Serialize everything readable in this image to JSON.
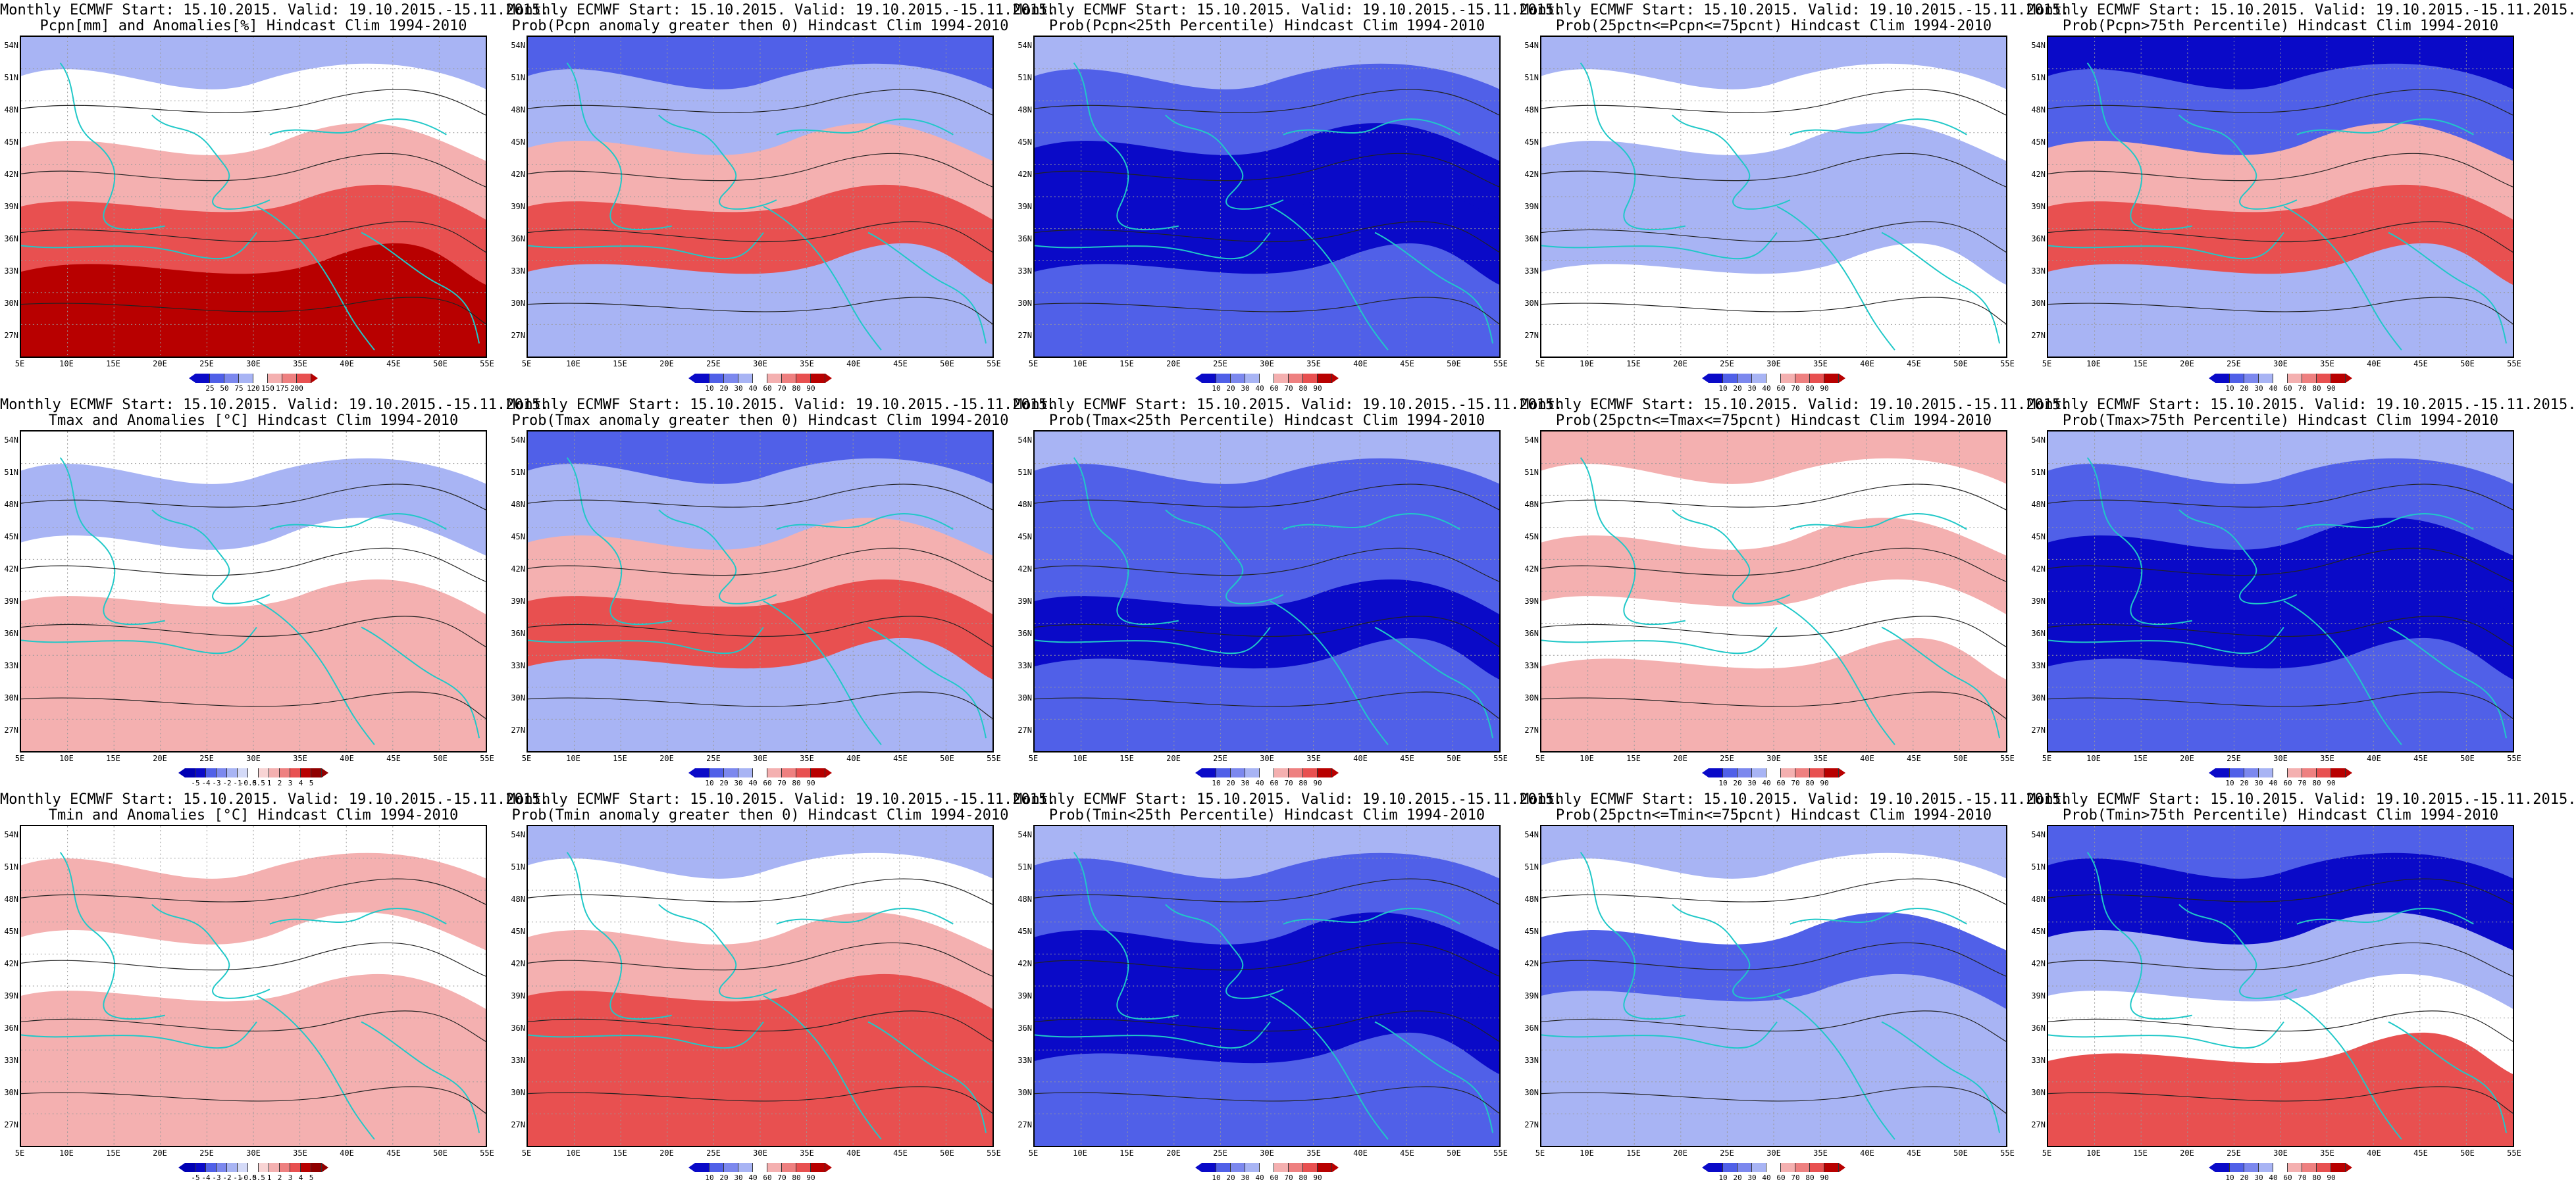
{
  "colors": {
    "deep_blue": "#0a0ac8",
    "mid_blue": "#5060e8",
    "light_blue": "#a8b4f4",
    "white": "#ffffff",
    "light_red": "#f4b0b0",
    "mid_red": "#e85050",
    "deep_red": "#b80000",
    "coast": "#20c8c8"
  },
  "axes": {
    "lat_labels": [
      "54N",
      "51N",
      "48N",
      "45N",
      "42N",
      "39N",
      "36N",
      "33N",
      "30N",
      "27N"
    ],
    "lon_labels": [
      "5E",
      "10E",
      "15E",
      "20E",
      "25E",
      "30E",
      "35E",
      "40E",
      "45E",
      "50E",
      "55E"
    ]
  },
  "rows": [
    {
      "variable": "Pcpn",
      "panels": [
        {
          "title1": "Monthly ECMWF Start: 15.10.2015. Valid: 19.10.2015.-15.11.2015.",
          "title2": "Pcpn[mm] and Anomalies[%] Hindcast Clim 1994-2010",
          "cbar": [
            "25",
            "50",
            "75",
            "120",
            "150",
            "175",
            "200"
          ],
          "scheme": "anom_red_upper"
        },
        {
          "title1": "Monthly ECMWF Start: 15.10.2015. Valid: 19.10.2015.-15.11.2015.",
          "title2": "Prob(Pcpn anomaly greater then 0) Hindcast Clim 1994-2010",
          "cbar": [
            "10",
            "20",
            "30",
            "40",
            "60",
            "70",
            "80",
            "90"
          ],
          "scheme": "prob_mixed"
        },
        {
          "title1": "Monthly ECMWF Start: 15.10.2015. Valid: 19.10.2015.-15.11.2015.",
          "title2": "Prob(Pcpn<25th Percentile) Hindcast Clim 1994-2010",
          "cbar": [
            "10",
            "20",
            "30",
            "40",
            "60",
            "70",
            "80",
            "90"
          ],
          "scheme": "prob_blue"
        },
        {
          "title1": "Monthly ECMWF Start: 15.10.2015. Valid: 19.10.2015.-15.11.2015.",
          "title2": "Prob(25pctn<=Pcpn<=75pcnt) Hindcast Clim 1994-2010",
          "cbar": [
            "10",
            "20",
            "30",
            "40",
            "60",
            "70",
            "80",
            "90"
          ],
          "scheme": "prob_light"
        },
        {
          "title1": "Monthly ECMWF Start: 15.10.2015. Valid: 19.10.2015.-15.11.2015.",
          "title2": "Prob(Pcpn>75th Percentile) Hindcast Clim 1994-2010",
          "cbar": [
            "10",
            "20",
            "30",
            "40",
            "60",
            "70",
            "80",
            "90"
          ],
          "scheme": "prob_mixed_blue"
        }
      ]
    },
    {
      "variable": "Tmax",
      "panels": [
        {
          "title1": "Monthly ECMWF Start: 15.10.2015. Valid: 19.10.2015.-15.11.2015.",
          "title2": "Tmax and Anomalies [°C] Hindcast Clim 1994-2010",
          "cbar": [
            "-5",
            "-4",
            "-3",
            "-2",
            "-1",
            "-0.5",
            "0.5",
            "1",
            "2",
            "3",
            "4",
            "5"
          ],
          "scheme": "anom_light"
        },
        {
          "title1": "Monthly ECMWF Start: 15.10.2015. Valid: 19.10.2015.-15.11.2015.",
          "title2": "Prob(Tmax anomaly greater then 0) Hindcast Clim 1994-2010",
          "cbar": [
            "10",
            "20",
            "30",
            "40",
            "60",
            "70",
            "80",
            "90"
          ],
          "scheme": "prob_mixed"
        },
        {
          "title1": "Monthly ECMWF Start: 15.10.2015. Valid: 19.10.2015.-15.11.2015.",
          "title2": "Prob(Tmax<25th Percentile) Hindcast Clim 1994-2010",
          "cbar": [
            "10",
            "20",
            "30",
            "40",
            "60",
            "70",
            "80",
            "90"
          ],
          "scheme": "prob_blue_mid"
        },
        {
          "title1": "Monthly ECMWF Start: 15.10.2015. Valid: 19.10.2015.-15.11.2015.",
          "title2": "Prob(25pctn<=Tmax<=75pcnt) Hindcast Clim 1994-2010",
          "cbar": [
            "10",
            "20",
            "30",
            "40",
            "60",
            "70",
            "80",
            "90"
          ],
          "scheme": "prob_light_red"
        },
        {
          "title1": "Monthly ECMWF Start: 15.10.2015. Valid: 19.10.2015.-15.11.2015.",
          "title2": "Prob(Tmax>75th Percentile) Hindcast Clim 1994-2010",
          "cbar": [
            "10",
            "20",
            "30",
            "40",
            "60",
            "70",
            "80",
            "90"
          ],
          "scheme": "prob_blue"
        }
      ]
    },
    {
      "variable": "Tmin",
      "panels": [
        {
          "title1": "Monthly ECMWF Start: 15.10.2015. Valid: 19.10.2015.-15.11.2015.",
          "title2": "Tmin and Anomalies [°C] Hindcast Clim 1994-2010",
          "cbar": [
            "-5",
            "-4",
            "-3",
            "-2",
            "-1",
            "-0.5",
            "0.5",
            "1",
            "2",
            "3",
            "4",
            "5"
          ],
          "scheme": "anom_light_red"
        },
        {
          "title1": "Monthly ECMWF Start: 15.10.2015. Valid: 19.10.2015.-15.11.2015.",
          "title2": "Prob(Tmin anomaly greater then 0) Hindcast Clim 1994-2010",
          "cbar": [
            "10",
            "20",
            "30",
            "40",
            "60",
            "70",
            "80",
            "90"
          ],
          "scheme": "prob_red"
        },
        {
          "title1": "Monthly ECMWF Start: 15.10.2015. Valid: 19.10.2015.-15.11.2015.",
          "title2": "Prob(Tmin<25th Percentile) Hindcast Clim 1994-2010",
          "cbar": [
            "10",
            "20",
            "30",
            "40",
            "60",
            "70",
            "80",
            "90"
          ],
          "scheme": "prob_blue"
        },
        {
          "title1": "Monthly ECMWF Start: 15.10.2015. Valid: 19.10.2015.-15.11.2015.",
          "title2": "Prob(25pctn<=Tmin<=75pcnt) Hindcast Clim 1994-2010",
          "cbar": [
            "10",
            "20",
            "30",
            "40",
            "60",
            "70",
            "80",
            "90"
          ],
          "scheme": "prob_light_mixed"
        },
        {
          "title1": "Monthly ECMWF Start: 15.10.2015. Valid: 19.10.2015.-15.11.2015.",
          "title2": "Prob(Tmin>75th Percentile) Hindcast Clim 1994-2010",
          "cbar": [
            "10",
            "20",
            "30",
            "40",
            "60",
            "70",
            "80",
            "90"
          ],
          "scheme": "prob_blue_red"
        }
      ]
    }
  ]
}
